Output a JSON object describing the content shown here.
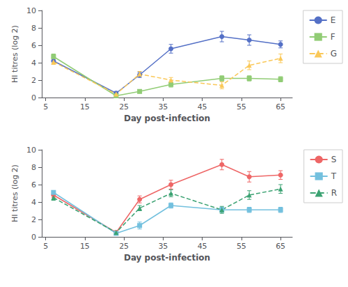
{
  "chart_data": [
    {
      "type": "line",
      "x": [
        7,
        23,
        29,
        37,
        50,
        57,
        65
      ],
      "series": [
        {
          "name": "E",
          "values": [
            4.2,
            0.5,
            2.6,
            5.6,
            7.0,
            6.6,
            6.1
          ],
          "yerr": [
            0.4,
            0.2,
            0.3,
            0.5,
            0.6,
            0.6,
            0.4
          ],
          "marker": "circle",
          "line_style": "solid"
        },
        {
          "name": "F",
          "values": [
            4.7,
            0.2,
            0.7,
            1.5,
            2.2,
            2.2,
            2.1
          ],
          "yerr": [
            0.3,
            0.1,
            0.2,
            0.3,
            0.3,
            0.3,
            0.3
          ],
          "marker": "square",
          "line_style": "solid"
        },
        {
          "name": "G",
          "values": [
            4.1,
            0.4,
            2.7,
            2.0,
            1.4,
            3.7,
            4.5
          ],
          "yerr": [
            0.3,
            0.2,
            0.3,
            0.3,
            0.4,
            0.5,
            0.5
          ],
          "marker": "triangle",
          "line_style": "dashed"
        }
      ],
      "xlabel": "Day post-infection",
      "ylabel": "HI titres (log 2)",
      "xlim": [
        4,
        68
      ],
      "xticks": [
        5,
        15,
        25,
        35,
        45,
        55,
        65
      ],
      "ylim": [
        0,
        10
      ],
      "yticks": [
        0,
        2,
        4,
        6,
        8,
        10
      ],
      "grid": false,
      "legend": "right"
    },
    {
      "type": "line",
      "x": [
        7,
        23,
        29,
        37,
        50,
        57,
        65
      ],
      "series": [
        {
          "name": "S",
          "values": [
            4.8,
            0.5,
            4.3,
            6.0,
            8.3,
            6.9,
            7.1
          ],
          "yerr": [
            0.3,
            0.2,
            0.4,
            0.5,
            0.6,
            0.6,
            0.5
          ],
          "marker": "circle",
          "line_style": "solid"
        },
        {
          "name": "T",
          "values": [
            5.1,
            0.4,
            1.3,
            3.6,
            3.1,
            3.1,
            3.1
          ],
          "yerr": [
            0.2,
            0.2,
            0.4,
            0.3,
            0.3,
            0.3,
            0.3
          ],
          "marker": "square",
          "line_style": "solid"
        },
        {
          "name": "R",
          "values": [
            4.5,
            0.5,
            3.3,
            5.0,
            3.1,
            4.8,
            5.5
          ],
          "yerr": [
            0.3,
            0.2,
            0.3,
            0.4,
            0.4,
            0.5,
            0.5
          ],
          "marker": "triangle",
          "line_style": "dashed"
        }
      ],
      "xlabel": "Day post-infection",
      "ylabel": "HI titres (log 2)",
      "xlim": [
        4,
        68
      ],
      "xticks": [
        5,
        15,
        25,
        35,
        45,
        55,
        65
      ],
      "ylim": [
        0,
        10
      ],
      "yticks": [
        0,
        2,
        4,
        6,
        8,
        10
      ],
      "grid": false,
      "legend": "right"
    }
  ]
}
